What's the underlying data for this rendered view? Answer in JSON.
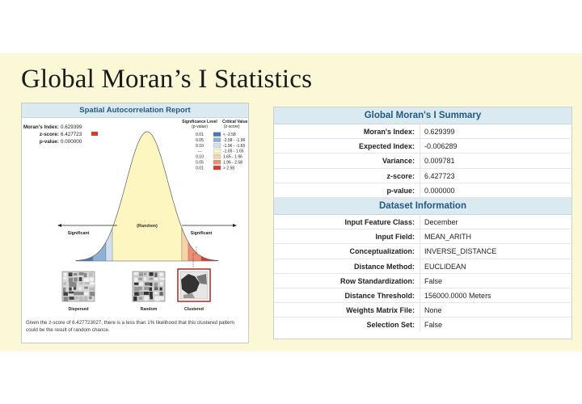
{
  "slide": {
    "title": "Global Moran’s I Statistics"
  },
  "report": {
    "header": "Spatial Autocorrelation Report",
    "stats": [
      {
        "label": "Moran's Index:",
        "value": "0.629399"
      },
      {
        "label": "z-score:",
        "value": "6.427723"
      },
      {
        "label": "p-value:",
        "value": "0.000000"
      }
    ],
    "legend": {
      "significance_header": [
        "Significance Level",
        "(p-value)"
      ],
      "critical_header": [
        "Critical Value",
        "(z-score)"
      ],
      "rows": [
        {
          "p": "0.01",
          "z": "< -2.58",
          "color": "#4a78b5"
        },
        {
          "p": "0.05",
          "z": "-2.58 - -1.96",
          "color": "#8fb0d8"
        },
        {
          "p": "0.10",
          "z": "-1.96 - -1.65",
          "color": "#cfe0ee"
        },
        {
          "p": "---",
          "z": "-1.65 - 1.65",
          "color": "#fdf6c0"
        },
        {
          "p": "0.10",
          "z": "1.65 - 1.96",
          "color": "#f7d3a8"
        },
        {
          "p": "0.05",
          "z": "1.96 - 2.58",
          "color": "#ee8d72"
        },
        {
          "p": "0.01",
          "z": "> 2.58",
          "color": "#d63b2c"
        }
      ]
    },
    "curve_label_center": "(Random)",
    "label_left": "Significant",
    "label_right": "Significant",
    "patterns": [
      "Dispersed",
      "Random",
      "Clustered"
    ],
    "caption": "Given the z-score of 6.427723027, there is a less than 1% likelihood that this clustered pattern could be the result of random chance."
  },
  "summary": {
    "title": "Global Moran's I Summary",
    "rows": [
      {
        "label": "Moran's Index:",
        "value": "0.629399"
      },
      {
        "label": "Expected Index:",
        "value": "-0.006289"
      },
      {
        "label": "Variance:",
        "value": "0.009781"
      },
      {
        "label": "z-score:",
        "value": "6.427723"
      },
      {
        "label": "p-value:",
        "value": "0.000000"
      }
    ]
  },
  "dataset": {
    "title": "Dataset Information",
    "rows": [
      {
        "label": "Input Feature Class:",
        "value": "December"
      },
      {
        "label": "Input Field:",
        "value": "MEAN_ARITH"
      },
      {
        "label": "Conceptualization:",
        "value": "INVERSE_DISTANCE"
      },
      {
        "label": "Distance Method:",
        "value": "EUCLIDEAN"
      },
      {
        "label": "Row Standardization:",
        "value": "False"
      },
      {
        "label": "Distance Threshold:",
        "value": "156000.0000 Meters"
      },
      {
        "label": "Weights Matrix File:",
        "value": "None"
      },
      {
        "label": "Selection Set:",
        "value": "False"
      }
    ]
  }
}
